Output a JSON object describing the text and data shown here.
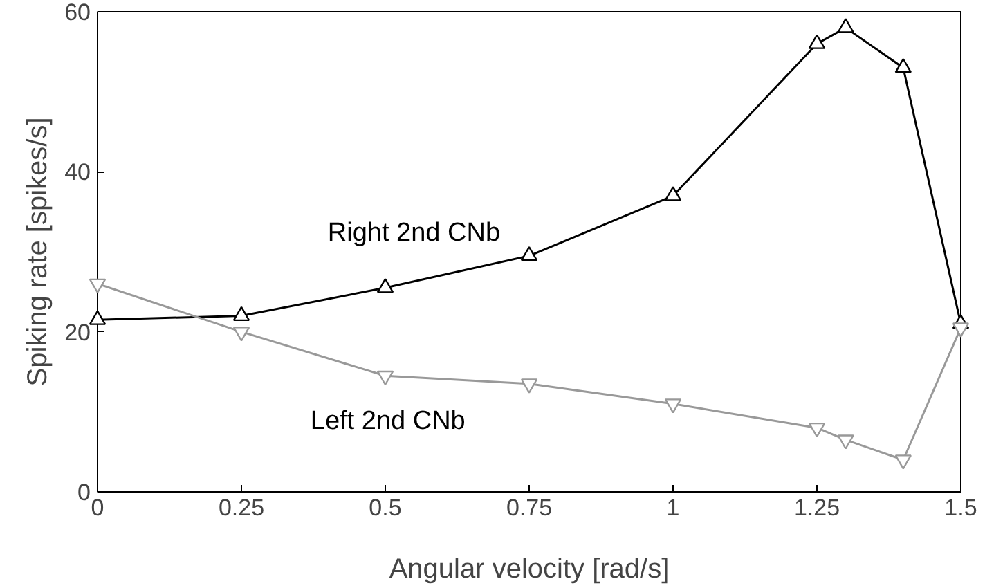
{
  "chart_data": {
    "type": "line",
    "xlabel": "Angular velocity [rad/s]",
    "ylabel": "Spiking rate [spikes/s]",
    "xlim": [
      0,
      1.5
    ],
    "ylim": [
      0,
      60
    ],
    "xticks": [
      0,
      0.25,
      0.5,
      0.75,
      1,
      1.25,
      1.5
    ],
    "yticks": [
      0,
      20,
      40,
      60
    ],
    "grid": false,
    "x": [
      0,
      0.25,
      0.5,
      0.75,
      1,
      1.25,
      1.3,
      1.4,
      1.5
    ],
    "series": [
      {
        "name": "Right 2nd CNb",
        "color": "#000000",
        "marker": "triangle",
        "values": [
          21.5,
          22,
          25.5,
          29.5,
          37,
          56,
          58,
          53,
          21
        ]
      },
      {
        "name": "Left 2nd CNb",
        "color": "#999999",
        "marker": "triangle_down",
        "values": [
          26,
          20,
          14.5,
          13.5,
          11,
          8,
          6.5,
          4,
          20.5
        ]
      }
    ]
  }
}
